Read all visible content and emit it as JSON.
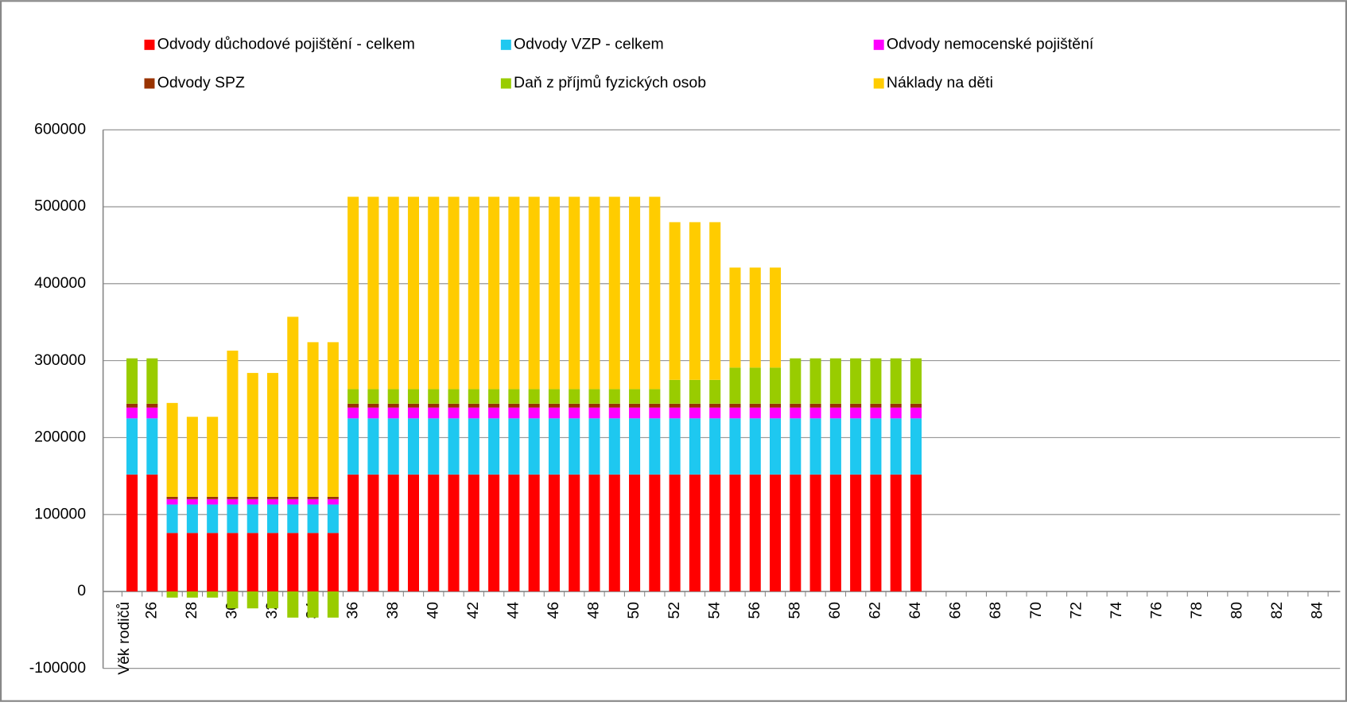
{
  "chart_data": {
    "type": "stacked_bar",
    "categories": [
      "Věk rodičů",
      "26",
      null,
      "28",
      null,
      "30",
      null,
      "32",
      null,
      "34",
      null,
      "36",
      null,
      "38",
      null,
      "40",
      null,
      "42",
      null,
      "44",
      null,
      "46",
      null,
      "48",
      null,
      "50",
      null,
      "52",
      null,
      "54",
      null,
      "56",
      null,
      "58",
      null,
      "60",
      null,
      "62",
      null,
      "64",
      null,
      "66",
      null,
      "68",
      null,
      "70",
      null,
      "72",
      null,
      "74",
      null,
      "76",
      null,
      "78",
      null,
      "80",
      null,
      "82",
      null,
      "84",
      null
    ],
    "series": [
      {
        "name": "Odvody důchodové pojištění - celkem",
        "color": "#ff0000",
        "values": [
          152000,
          152000,
          76000,
          76000,
          76000,
          76000,
          76000,
          76000,
          76000,
          76000,
          76000,
          152000,
          152000,
          152000,
          152000,
          152000,
          152000,
          152000,
          152000,
          152000,
          152000,
          152000,
          152000,
          152000,
          152000,
          152000,
          152000,
          152000,
          152000,
          152000,
          152000,
          152000,
          152000,
          152000,
          152000,
          152000,
          152000,
          152000,
          152000,
          152000,
          null,
          null,
          null,
          null,
          null,
          null,
          null,
          null,
          null,
          null,
          null,
          null,
          null,
          null,
          null,
          null,
          null,
          null,
          null,
          null,
          null
        ]
      },
      {
        "name": "Odvody VZP - celkem",
        "color": "#1ec8f0",
        "values": [
          73000,
          73000,
          37000,
          37000,
          37000,
          37000,
          37000,
          37000,
          37000,
          37000,
          37000,
          73000,
          73000,
          73000,
          73000,
          73000,
          73000,
          73000,
          73000,
          73000,
          73000,
          73000,
          73000,
          73000,
          73000,
          73000,
          73000,
          73000,
          73000,
          73000,
          73000,
          73000,
          73000,
          73000,
          73000,
          73000,
          73000,
          73000,
          73000,
          73000,
          null,
          null,
          null,
          null,
          null,
          null,
          null,
          null,
          null,
          null,
          null,
          null,
          null,
          null,
          null,
          null,
          null,
          null,
          null,
          null,
          null
        ]
      },
      {
        "name": "Odvody nemocenské pojištění",
        "color": "#ff00ff",
        "values": [
          14000,
          14000,
          7000,
          7000,
          7000,
          7000,
          7000,
          7000,
          7000,
          7000,
          7000,
          14000,
          14000,
          14000,
          14000,
          14000,
          14000,
          14000,
          14000,
          14000,
          14000,
          14000,
          14000,
          14000,
          14000,
          14000,
          14000,
          14000,
          14000,
          14000,
          14000,
          14000,
          14000,
          14000,
          14000,
          14000,
          14000,
          14000,
          14000,
          14000,
          null,
          null,
          null,
          null,
          null,
          null,
          null,
          null,
          null,
          null,
          null,
          null,
          null,
          null,
          null,
          null,
          null,
          null,
          null,
          null,
          null
        ]
      },
      {
        "name": "Odvody SPZ",
        "color": "#993300",
        "values": [
          5000,
          5000,
          3000,
          3000,
          3000,
          3000,
          3000,
          3000,
          3000,
          3000,
          3000,
          5000,
          5000,
          5000,
          5000,
          5000,
          5000,
          5000,
          5000,
          5000,
          5000,
          5000,
          5000,
          5000,
          5000,
          5000,
          5000,
          5000,
          5000,
          5000,
          5000,
          5000,
          5000,
          5000,
          5000,
          5000,
          5000,
          5000,
          5000,
          5000,
          null,
          null,
          null,
          null,
          null,
          null,
          null,
          null,
          null,
          null,
          null,
          null,
          null,
          null,
          null,
          null,
          null,
          null,
          null,
          null,
          null
        ]
      },
      {
        "name": "Daň z příjmů fyzických osob",
        "color": "#99cc00",
        "values": [
          59000,
          59000,
          -8000,
          -8000,
          -8000,
          -22000,
          -22000,
          -22000,
          -34000,
          -34000,
          -34000,
          19000,
          19000,
          19000,
          19000,
          19000,
          19000,
          19000,
          19000,
          19000,
          19000,
          19000,
          19000,
          19000,
          19000,
          19000,
          19000,
          31000,
          31000,
          31000,
          47000,
          47000,
          47000,
          59000,
          59000,
          59000,
          59000,
          59000,
          59000,
          59000,
          null,
          null,
          null,
          null,
          null,
          null,
          null,
          null,
          null,
          null,
          null,
          null,
          null,
          null,
          null,
          null,
          null,
          null,
          null,
          null,
          null
        ]
      },
      {
        "name": "Náklady na děti",
        "color": "#ffcc00",
        "values": [
          0,
          0,
          122000,
          104000,
          104000,
          190000,
          161000,
          161000,
          234000,
          201000,
          201000,
          250000,
          250000,
          250000,
          250000,
          250000,
          250000,
          250000,
          250000,
          250000,
          250000,
          250000,
          250000,
          250000,
          250000,
          250000,
          250000,
          205000,
          205000,
          205000,
          130000,
          130000,
          130000,
          0,
          0,
          0,
          0,
          0,
          0,
          0,
          null,
          null,
          null,
          null,
          null,
          null,
          null,
          null,
          null,
          null,
          null,
          null,
          null,
          null,
          null,
          null,
          null,
          null,
          null,
          null,
          null
        ]
      }
    ],
    "ylim": [
      -100000,
      600000
    ],
    "yticks": [
      -100000,
      0,
      100000,
      200000,
      300000,
      400000,
      500000,
      600000
    ],
    "grid": true
  }
}
